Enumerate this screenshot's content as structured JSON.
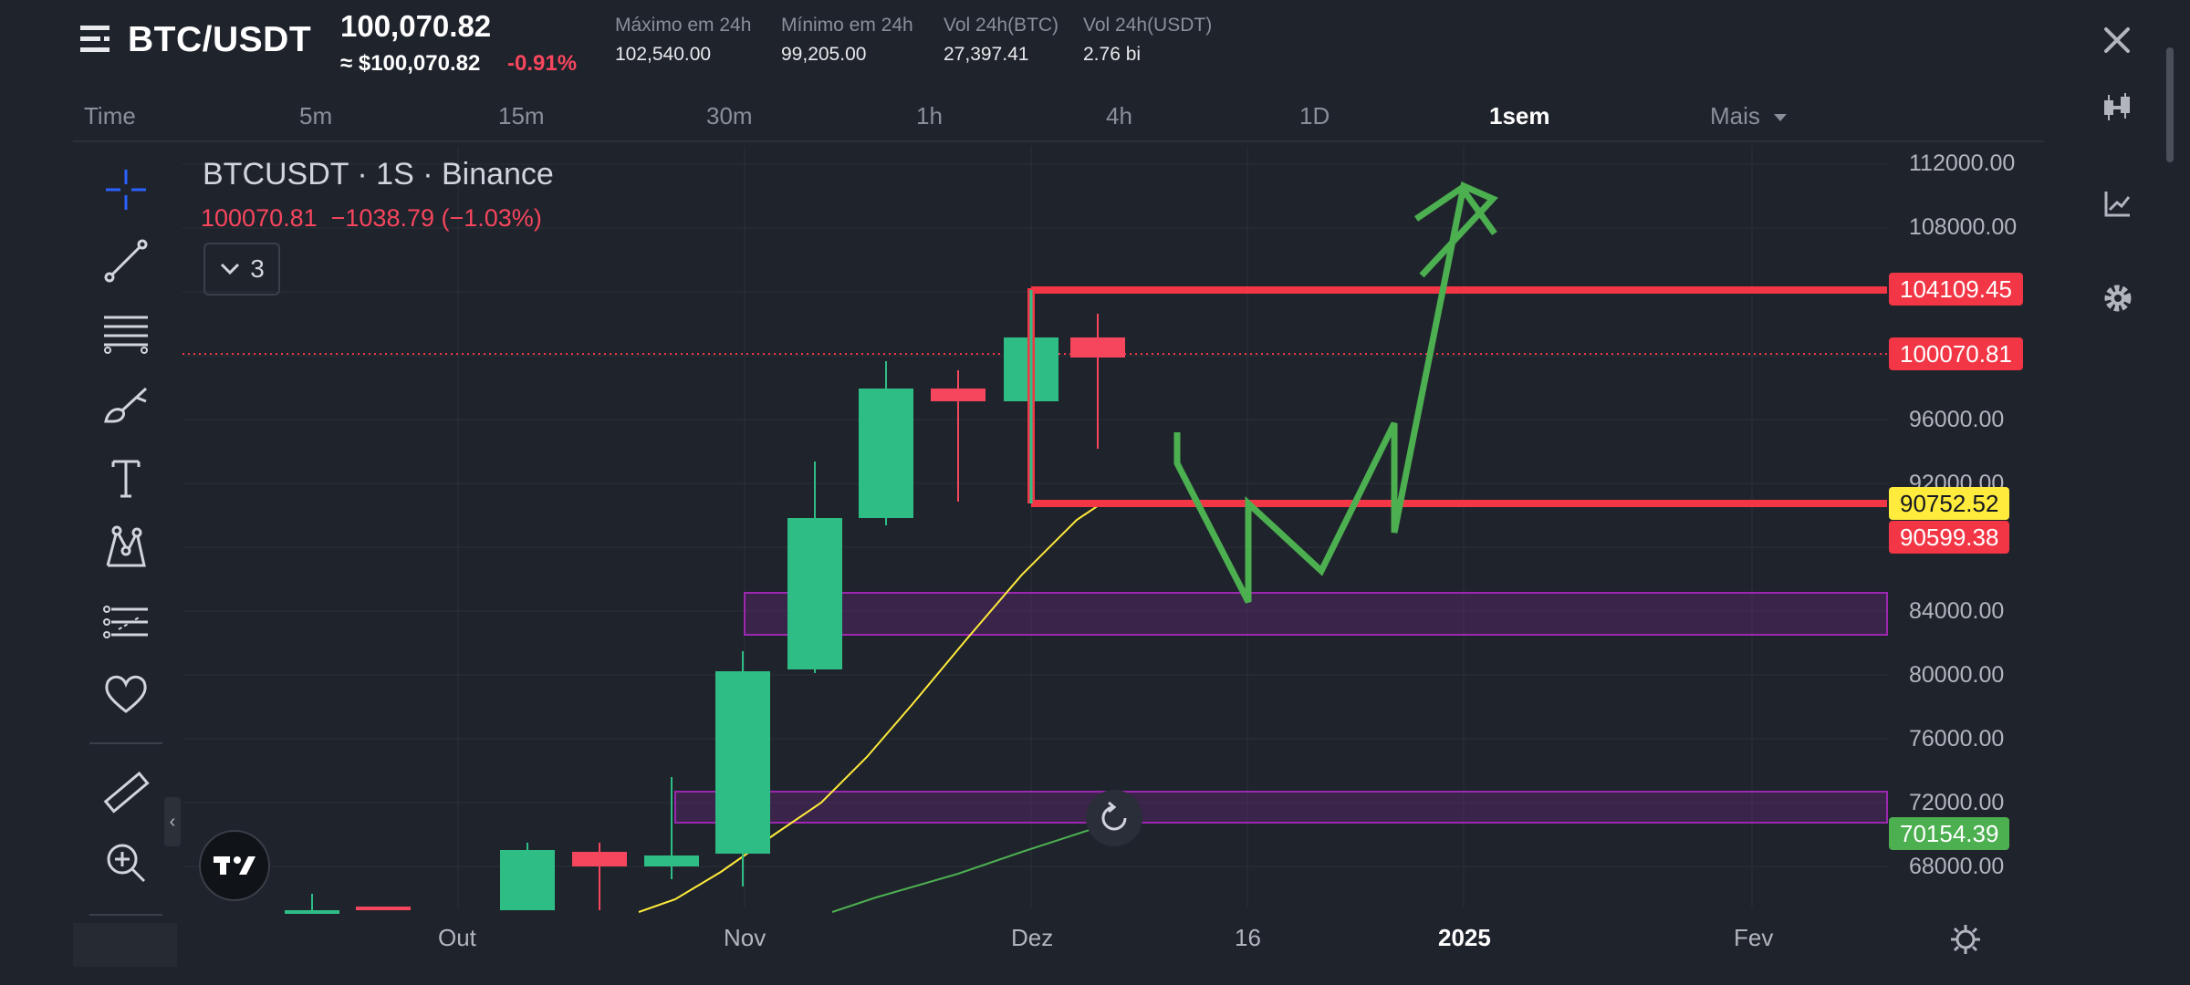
{
  "header": {
    "pair": "BTC/USDT",
    "price": "100,070.82",
    "price_usd": "≈ $100,070.82",
    "change": "-0.91%",
    "stats": [
      {
        "label": "Máximo em 24h",
        "value": "102,540.00"
      },
      {
        "label": "Mínimo em 24h",
        "value": "99,205.00"
      },
      {
        "label": "Vol 24h(BTC)",
        "value": "27,397.41"
      },
      {
        "label": "Vol 24h(USDT)",
        "value": "2.76 bi"
      }
    ]
  },
  "timeframes": [
    "Time",
    "5m",
    "15m",
    "30m",
    "1h",
    "4h",
    "1D",
    "1sem",
    "Mais"
  ],
  "active_timeframe": "1sem",
  "legend": {
    "title": "BTCUSDT · 1S · Binance",
    "values": "100070.81  −1038.79 (−1.03%)",
    "indicator_count": "3"
  },
  "price_axis": [
    "112000.00",
    "108000.00",
    "96000.00",
    "92000.00",
    "84000.00",
    "80000.00",
    "76000.00",
    "72000.00",
    "68000.00"
  ],
  "price_tags": [
    {
      "value": "104109.45",
      "bg": "#f23645",
      "fg": "#ffffff"
    },
    {
      "value": "100070.81",
      "bg": "#f23645",
      "fg": "#ffffff"
    },
    {
      "value": "90752.52",
      "bg": "#ffeb3b",
      "fg": "#131722"
    },
    {
      "value": "90599.38",
      "bg": "#f23645",
      "fg": "#ffffff"
    },
    {
      "value": "70154.39",
      "bg": "#4caf50",
      "fg": "#ffffff"
    }
  ],
  "time_axis": [
    "Out",
    "Nov",
    "Dez",
    "16",
    "2025",
    "Fev"
  ],
  "colors": {
    "background": "#1f232c",
    "up": "#2ebd85",
    "down": "#f6465d",
    "level_line": "#f23645",
    "zone": "#9c27b0",
    "projection": "#4caf50",
    "ma_fast": "#ffeb3b",
    "ma_slow": "#4caf50"
  },
  "icons": {
    "toolbar": [
      "crosshair-icon",
      "trend-line-icon",
      "fib-levels-icon",
      "brush-icon",
      "text-icon",
      "pattern-icon",
      "forecast-icon",
      "favorite-heart-icon",
      "ruler-icon",
      "zoom-in-icon"
    ],
    "right": [
      "close-icon",
      "candlestick-icon",
      "indicator-chart-icon",
      "gear-icon"
    ]
  }
}
